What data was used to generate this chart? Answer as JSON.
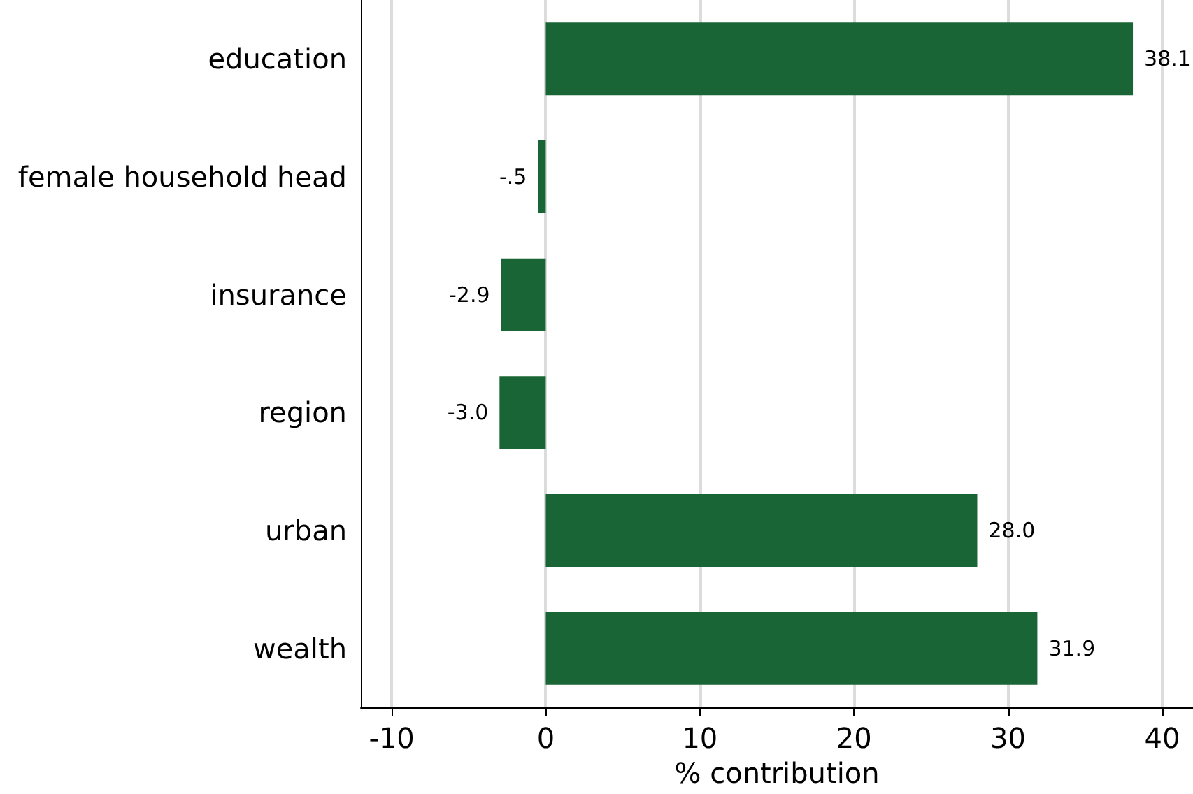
{
  "chart_data": {
    "type": "bar",
    "orientation": "horizontal",
    "xlabel": "% contribution",
    "categories": [
      "education",
      "female household head",
      "insurance",
      "region",
      "urban",
      "wealth"
    ],
    "values": [
      38.1,
      -0.5,
      -2.9,
      -3.0,
      28.0,
      31.9
    ],
    "value_labels": [
      "38.1",
      "-.5",
      "-2.9",
      "-3.0",
      "28.0",
      "31.9"
    ],
    "color": "#1a6535",
    "xlim": [
      -12,
      42
    ],
    "xticks": [
      -10,
      0,
      10,
      20,
      30,
      40
    ],
    "grid": "x"
  }
}
